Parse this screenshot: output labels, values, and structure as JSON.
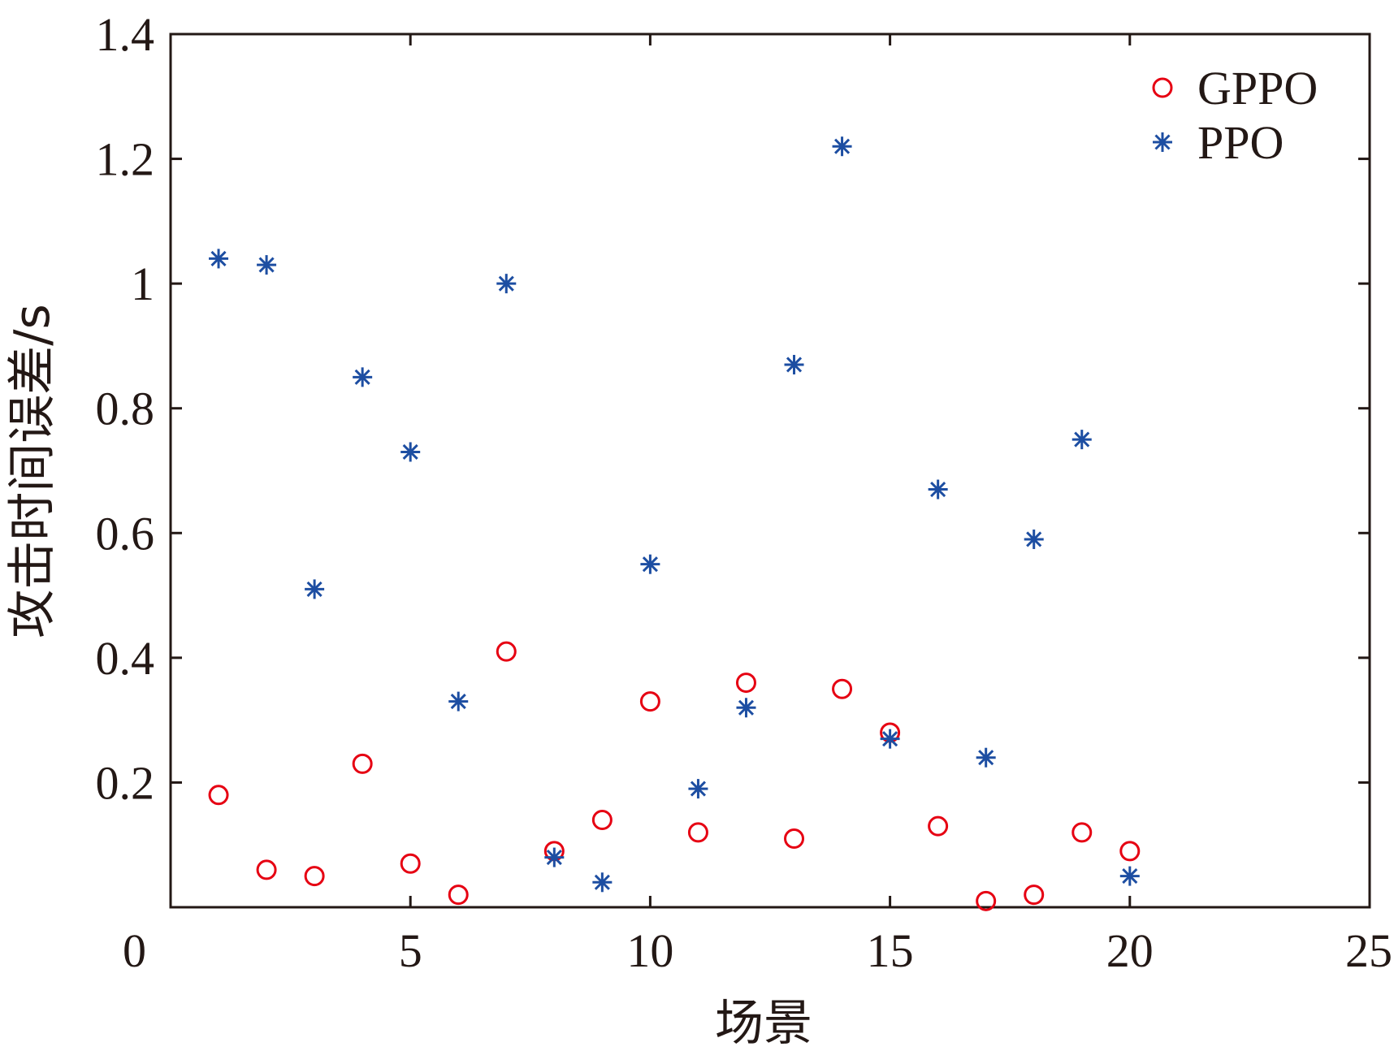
{
  "chart_data": {
    "type": "scatter",
    "xlabel": "场景",
    "ylabel": "攻击时间误差/s",
    "xlim": [
      0,
      25
    ],
    "ylim": [
      0,
      1.4
    ],
    "xticks": [
      "0",
      "5",
      "10",
      "15",
      "20",
      "25"
    ],
    "yticks": [
      "0.2",
      "0.4",
      "0.6",
      "0.8",
      "1",
      "1.2",
      "1.4"
    ],
    "grid": false,
    "legend_position": "top-right",
    "series": [
      {
        "name": "GPPO",
        "marker": "circle",
        "color": "#e60012",
        "x": [
          1,
          2,
          3,
          4,
          5,
          6,
          7,
          8,
          9,
          10,
          11,
          12,
          13,
          14,
          15,
          16,
          17,
          18,
          19,
          20
        ],
        "y": [
          0.18,
          0.06,
          0.05,
          0.23,
          0.07,
          0.02,
          0.41,
          0.09,
          0.14,
          0.33,
          0.12,
          0.36,
          0.11,
          0.35,
          0.28,
          0.13,
          0.01,
          0.02,
          0.12,
          0.09
        ]
      },
      {
        "name": "PPO",
        "marker": "asterisk",
        "color": "#1d4ea2",
        "x": [
          1,
          2,
          3,
          4,
          5,
          6,
          7,
          8,
          9,
          10,
          11,
          12,
          13,
          14,
          15,
          16,
          17,
          18,
          19,
          20
        ],
        "y": [
          1.04,
          1.03,
          0.51,
          0.85,
          0.73,
          0.33,
          1.0,
          0.08,
          0.04,
          0.55,
          0.19,
          0.32,
          0.87,
          1.22,
          0.27,
          0.67,
          0.24,
          0.59,
          0.75,
          0.05
        ]
      }
    ]
  }
}
